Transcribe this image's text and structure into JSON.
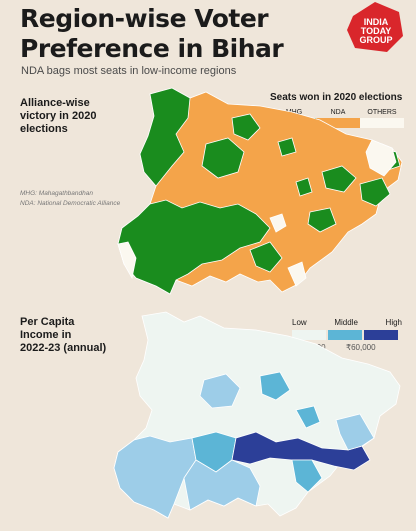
{
  "header": {
    "title_line1": "Region-wise Voter",
    "title_line2": "Preference in Bihar",
    "subtitle": "NDA bags most seats in low-income regions",
    "logo_line1": "INDIA",
    "logo_line2": "TODAY",
    "logo_line3": "GROUP"
  },
  "map1": {
    "label_line1": "Alliance-wise",
    "label_line2": "victory in 2020",
    "label_line3": "elections",
    "legend_title": "Seats won in 2020 elections",
    "legend": [
      {
        "label": "MHG",
        "color": "#1a8c1e"
      },
      {
        "label": "NDA",
        "color": "#f4a44a"
      },
      {
        "label": "OTHERS",
        "color": "#fbf8f0"
      }
    ],
    "note_mhg": "MHG: Mahagathbandhan",
    "note_nda": "NDA: National Democratic Alliance"
  },
  "map2": {
    "label_line1": "Per Capita",
    "label_line2": "Income in",
    "label_line3": "2022-23 (annual)",
    "legend": [
      {
        "label": "Low",
        "color": "#eef5f1"
      },
      {
        "label": "Middle",
        "color": "#5cb5d6"
      },
      {
        "label": "High",
        "color": "#2c3f98"
      }
    ],
    "value_low": "₹45,000",
    "value_high": "₹60,000"
  },
  "colors": {
    "background": "#efe6da",
    "mhg": "#1a8c1e",
    "nda": "#f4a44a",
    "others": "#fbf8f0",
    "income_low": "#eef5f1",
    "income_mid_light": "#9dcde8",
    "income_mid": "#5cb5d6",
    "income_high": "#2c3f98",
    "logo": "#d9262b"
  }
}
